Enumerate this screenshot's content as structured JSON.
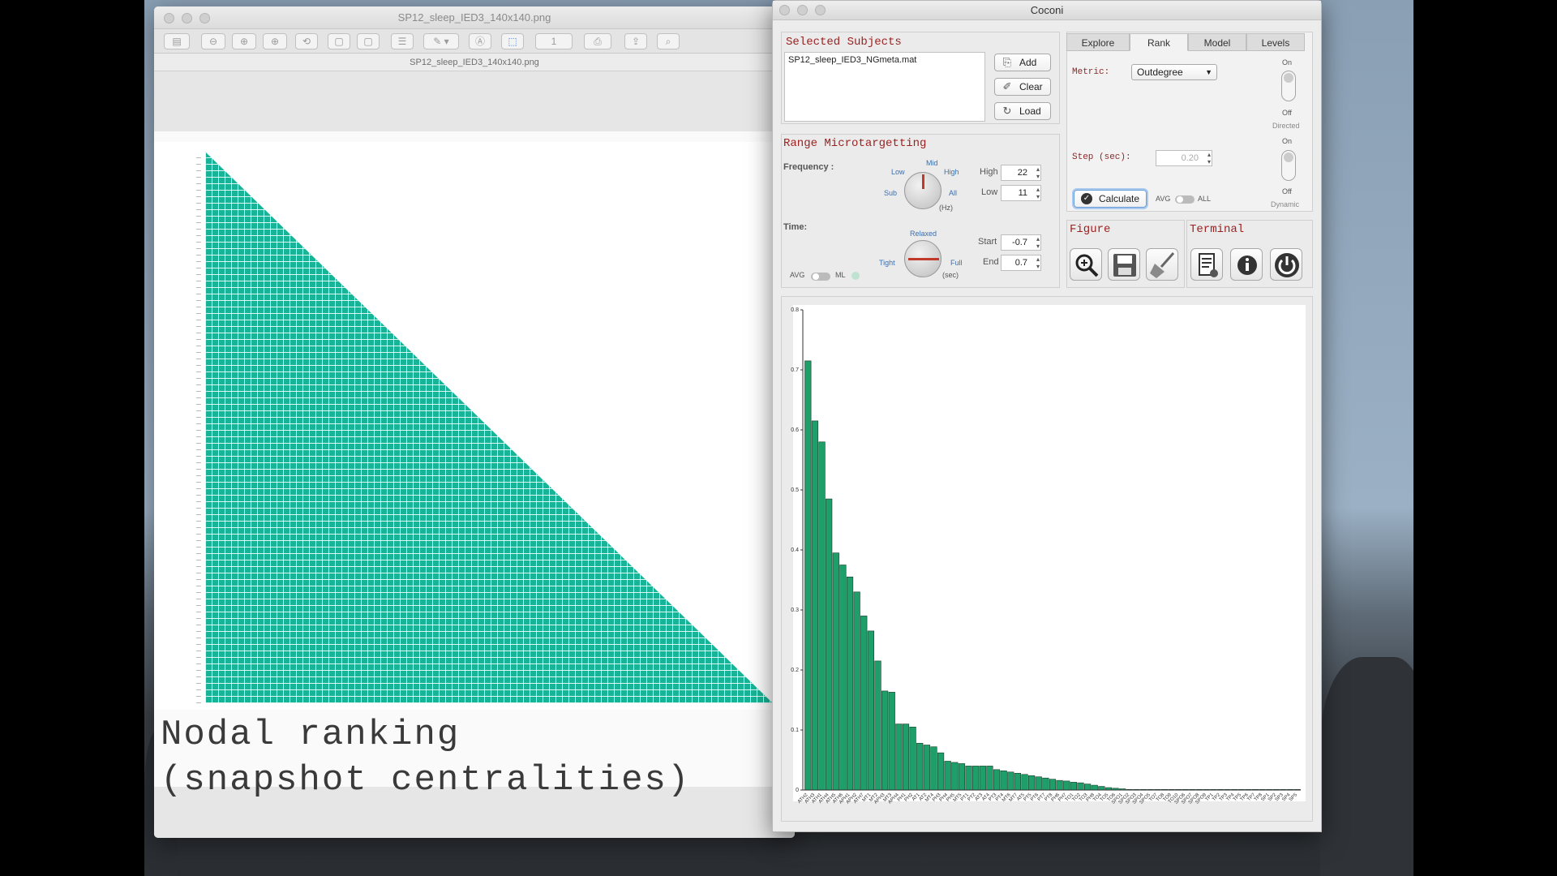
{
  "preview": {
    "window_title": "SP12_sleep_IED3_140x140.png",
    "file_label": "SP12_sleep_IED3_140x140.png",
    "page_number": "1",
    "overlay_line1": "Nodal ranking",
    "overlay_line2": "(snapshot centralities)"
  },
  "coconi": {
    "title": "Coconi",
    "selected_subjects": {
      "title": "Selected Subjects",
      "items": [
        "SP12_sleep_IED3_NGmeta.mat"
      ],
      "add_label": "Add",
      "clear_label": "Clear",
      "load_label": "Load"
    },
    "range": {
      "title": "Range Microtargetting",
      "frequency_label": "Frequency :",
      "freq_knob": {
        "low": "Low",
        "mid": "Mid",
        "high": "High",
        "sub": "Sub",
        "all": "All",
        "unit": "(Hz)"
      },
      "high_label": "High",
      "high_value": "22",
      "low_label": "Low",
      "low_value": "11",
      "time_label": "Time:",
      "time_knob": {
        "relaxed": "Relaxed",
        "tight": "Tight",
        "full": "Full",
        "unit": "(sec)"
      },
      "start_label": "Start",
      "start_value": "-0.7",
      "end_label": "End",
      "end_value": "0.7",
      "avg_label": "AVG",
      "ml_label": "ML"
    },
    "tabs": [
      "Explore",
      "Rank",
      "Model",
      "Levels"
    ],
    "active_tab": "Rank",
    "rank": {
      "metric_label": "Metric:",
      "metric_value": "Outdegree",
      "directed_on": "On",
      "directed_off": "Off",
      "directed_label": "Directed",
      "step_label": "Step (sec):",
      "step_value": "0.20",
      "dynamic_on": "On",
      "dynamic_off": "Off",
      "dynamic_label": "Dynamic",
      "calculate_label": "Calculate",
      "avg_label": "AVG",
      "all_label": "ALL"
    },
    "figure_title": "Figure",
    "terminal_title": "Terminal",
    "icons": [
      "zoom-icon",
      "save-icon",
      "broom-icon",
      "report-icon",
      "info-icon",
      "power-icon"
    ]
  },
  "chart_data": {
    "type": "bar",
    "color": "#1e9e68",
    "ylim": [
      0,
      0.8
    ],
    "yticks": [
      "0",
      "0.1",
      "0.2",
      "0.3",
      "0.4",
      "0.5",
      "0.6",
      "0.7",
      "0.8"
    ],
    "values": [
      0.715,
      0.615,
      0.58,
      0.485,
      0.395,
      0.375,
      0.355,
      0.33,
      0.29,
      0.265,
      0.215,
      0.165,
      0.163,
      0.11,
      0.11,
      0.105,
      0.078,
      0.075,
      0.072,
      0.062,
      0.048,
      0.046,
      0.044,
      0.04,
      0.04,
      0.04,
      0.04,
      0.034,
      0.032,
      0.03,
      0.028,
      0.026,
      0.024,
      0.022,
      0.02,
      0.018,
      0.016,
      0.015,
      0.013,
      0.012,
      0.01,
      0.008,
      0.006,
      0.004,
      0.003,
      0.002,
      0.001,
      0.001,
      0.001,
      0.001,
      0.001,
      0.001,
      0.001,
      0.001,
      0.001,
      0.001,
      0.001,
      0.001,
      0.001,
      0.001,
      0.001,
      0.001,
      0.001,
      0.001,
      0.001,
      0.001,
      0.001,
      0.001,
      0.001,
      0.001,
      0.001
    ],
    "categories": [
      "ATH2",
      "ATH3",
      "ATH1",
      "ATH4",
      "ATH5",
      "ATH6",
      "APH1",
      "APH2",
      "ATH7",
      "MT1",
      "MT2",
      "APH3",
      "MT3",
      "APH4",
      "PH1",
      "PH2",
      "AT1",
      "AT2",
      "MT4",
      "PH3",
      "PH4",
      "PH5",
      "MT5",
      "PT1",
      "PT2",
      "AT3",
      "AT4",
      "PT3",
      "PT4",
      "MT6",
      "MT7",
      "AT5",
      "PT5",
      "PT6",
      "PT7",
      "PT8",
      "PH6",
      "PH7",
      "TO1",
      "TO2",
      "TO3",
      "PH8",
      "TO4",
      "TO5",
      "TO6",
      "SPO1",
      "SPO2",
      "SPO3",
      "SPO4",
      "SPO5",
      "TO7",
      "TO8",
      "TO9",
      "TO10",
      "SPO6",
      "SPO7",
      "SPO8",
      "SPO9",
      "TP1",
      "TP2",
      "TP3",
      "TP4",
      "TP5",
      "TP6",
      "TP7",
      "TP8",
      "SP1",
      "SP2",
      "SP3",
      "SP4",
      "SP5"
    ]
  }
}
